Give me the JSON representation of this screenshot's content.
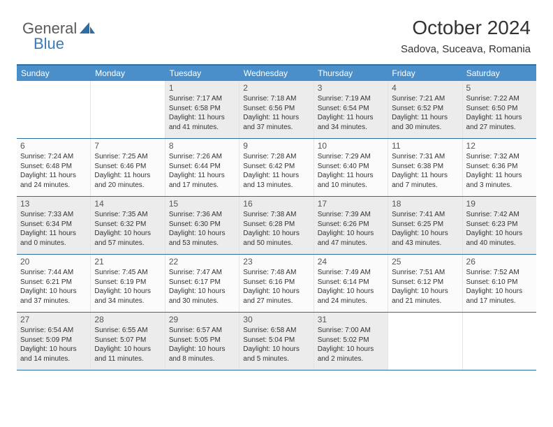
{
  "logo": {
    "part1": "General",
    "part2": "Blue"
  },
  "header": {
    "title": "October 2024",
    "location": "Sadova, Suceava, Romania"
  },
  "dayHeaders": [
    "Sunday",
    "Monday",
    "Tuesday",
    "Wednesday",
    "Thursday",
    "Friday",
    "Saturday"
  ],
  "colors": {
    "headerBg": "#4a8fc9",
    "borderBlue": "#2e6da4",
    "shaded": "#ececec",
    "normal": "#fbfbfb"
  },
  "weeks": [
    [
      {
        "empty": true
      },
      {
        "empty": true
      },
      {
        "day": "1",
        "shaded": true,
        "sunrise": "Sunrise: 7:17 AM",
        "sunset": "Sunset: 6:58 PM",
        "daylight": "Daylight: 11 hours and 41 minutes."
      },
      {
        "day": "2",
        "shaded": true,
        "sunrise": "Sunrise: 7:18 AM",
        "sunset": "Sunset: 6:56 PM",
        "daylight": "Daylight: 11 hours and 37 minutes."
      },
      {
        "day": "3",
        "shaded": true,
        "sunrise": "Sunrise: 7:19 AM",
        "sunset": "Sunset: 6:54 PM",
        "daylight": "Daylight: 11 hours and 34 minutes."
      },
      {
        "day": "4",
        "shaded": true,
        "sunrise": "Sunrise: 7:21 AM",
        "sunset": "Sunset: 6:52 PM",
        "daylight": "Daylight: 11 hours and 30 minutes."
      },
      {
        "day": "5",
        "shaded": true,
        "sunrise": "Sunrise: 7:22 AM",
        "sunset": "Sunset: 6:50 PM",
        "daylight": "Daylight: 11 hours and 27 minutes."
      }
    ],
    [
      {
        "day": "6",
        "sunrise": "Sunrise: 7:24 AM",
        "sunset": "Sunset: 6:48 PM",
        "daylight": "Daylight: 11 hours and 24 minutes."
      },
      {
        "day": "7",
        "sunrise": "Sunrise: 7:25 AM",
        "sunset": "Sunset: 6:46 PM",
        "daylight": "Daylight: 11 hours and 20 minutes."
      },
      {
        "day": "8",
        "sunrise": "Sunrise: 7:26 AM",
        "sunset": "Sunset: 6:44 PM",
        "daylight": "Daylight: 11 hours and 17 minutes."
      },
      {
        "day": "9",
        "sunrise": "Sunrise: 7:28 AM",
        "sunset": "Sunset: 6:42 PM",
        "daylight": "Daylight: 11 hours and 13 minutes."
      },
      {
        "day": "10",
        "sunrise": "Sunrise: 7:29 AM",
        "sunset": "Sunset: 6:40 PM",
        "daylight": "Daylight: 11 hours and 10 minutes."
      },
      {
        "day": "11",
        "sunrise": "Sunrise: 7:31 AM",
        "sunset": "Sunset: 6:38 PM",
        "daylight": "Daylight: 11 hours and 7 minutes."
      },
      {
        "day": "12",
        "sunrise": "Sunrise: 7:32 AM",
        "sunset": "Sunset: 6:36 PM",
        "daylight": "Daylight: 11 hours and 3 minutes."
      }
    ],
    [
      {
        "day": "13",
        "shaded": true,
        "sunrise": "Sunrise: 7:33 AM",
        "sunset": "Sunset: 6:34 PM",
        "daylight": "Daylight: 11 hours and 0 minutes."
      },
      {
        "day": "14",
        "shaded": true,
        "sunrise": "Sunrise: 7:35 AM",
        "sunset": "Sunset: 6:32 PM",
        "daylight": "Daylight: 10 hours and 57 minutes."
      },
      {
        "day": "15",
        "shaded": true,
        "sunrise": "Sunrise: 7:36 AM",
        "sunset": "Sunset: 6:30 PM",
        "daylight": "Daylight: 10 hours and 53 minutes."
      },
      {
        "day": "16",
        "shaded": true,
        "sunrise": "Sunrise: 7:38 AM",
        "sunset": "Sunset: 6:28 PM",
        "daylight": "Daylight: 10 hours and 50 minutes."
      },
      {
        "day": "17",
        "shaded": true,
        "sunrise": "Sunrise: 7:39 AM",
        "sunset": "Sunset: 6:26 PM",
        "daylight": "Daylight: 10 hours and 47 minutes."
      },
      {
        "day": "18",
        "shaded": true,
        "sunrise": "Sunrise: 7:41 AM",
        "sunset": "Sunset: 6:25 PM",
        "daylight": "Daylight: 10 hours and 43 minutes."
      },
      {
        "day": "19",
        "shaded": true,
        "sunrise": "Sunrise: 7:42 AM",
        "sunset": "Sunset: 6:23 PM",
        "daylight": "Daylight: 10 hours and 40 minutes."
      }
    ],
    [
      {
        "day": "20",
        "sunrise": "Sunrise: 7:44 AM",
        "sunset": "Sunset: 6:21 PM",
        "daylight": "Daylight: 10 hours and 37 minutes."
      },
      {
        "day": "21",
        "sunrise": "Sunrise: 7:45 AM",
        "sunset": "Sunset: 6:19 PM",
        "daylight": "Daylight: 10 hours and 34 minutes."
      },
      {
        "day": "22",
        "sunrise": "Sunrise: 7:47 AM",
        "sunset": "Sunset: 6:17 PM",
        "daylight": "Daylight: 10 hours and 30 minutes."
      },
      {
        "day": "23",
        "sunrise": "Sunrise: 7:48 AM",
        "sunset": "Sunset: 6:16 PM",
        "daylight": "Daylight: 10 hours and 27 minutes."
      },
      {
        "day": "24",
        "sunrise": "Sunrise: 7:49 AM",
        "sunset": "Sunset: 6:14 PM",
        "daylight": "Daylight: 10 hours and 24 minutes."
      },
      {
        "day": "25",
        "sunrise": "Sunrise: 7:51 AM",
        "sunset": "Sunset: 6:12 PM",
        "daylight": "Daylight: 10 hours and 21 minutes."
      },
      {
        "day": "26",
        "sunrise": "Sunrise: 7:52 AM",
        "sunset": "Sunset: 6:10 PM",
        "daylight": "Daylight: 10 hours and 17 minutes."
      }
    ],
    [
      {
        "day": "27",
        "shaded": true,
        "sunrise": "Sunrise: 6:54 AM",
        "sunset": "Sunset: 5:09 PM",
        "daylight": "Daylight: 10 hours and 14 minutes."
      },
      {
        "day": "28",
        "shaded": true,
        "sunrise": "Sunrise: 6:55 AM",
        "sunset": "Sunset: 5:07 PM",
        "daylight": "Daylight: 10 hours and 11 minutes."
      },
      {
        "day": "29",
        "shaded": true,
        "sunrise": "Sunrise: 6:57 AM",
        "sunset": "Sunset: 5:05 PM",
        "daylight": "Daylight: 10 hours and 8 minutes."
      },
      {
        "day": "30",
        "shaded": true,
        "sunrise": "Sunrise: 6:58 AM",
        "sunset": "Sunset: 5:04 PM",
        "daylight": "Daylight: 10 hours and 5 minutes."
      },
      {
        "day": "31",
        "shaded": true,
        "sunrise": "Sunrise: 7:00 AM",
        "sunset": "Sunset: 5:02 PM",
        "daylight": "Daylight: 10 hours and 2 minutes."
      },
      {
        "empty": true
      },
      {
        "empty": true
      }
    ]
  ]
}
